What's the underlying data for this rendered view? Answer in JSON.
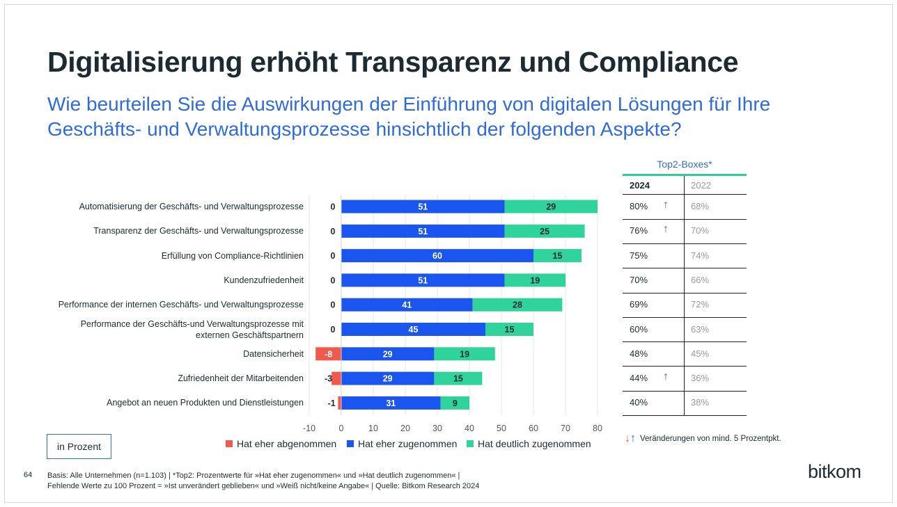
{
  "header": {
    "title": "Digitalisierung erhöht Transparenz und Compliance",
    "subtitle": "Wie beurteilen Sie die Auswirkungen der Einführung von digitalen Lösungen für Ihre Geschäfts- und Verwaltungsprozesse hinsichtlich der folgenden Aspekte?"
  },
  "chart_data": {
    "type": "bar",
    "orientation": "horizontal",
    "stacked": true,
    "categories": [
      "Automatisierung der Geschäfts- und Verwaltungsprozesse",
      "Transparenz der Geschäfts- und Verwaltungsprozesse",
      "Erfüllung von Compliance-Richtlinien",
      "Kundenzufriedenheit",
      "Performance der internen Geschäfts- und Verwaltungsprozesse",
      "Performance der Geschäfts-und Verwaltungsprozesse mit externen Geschäftspartnern",
      "Datensicherheit",
      "Zufriedenheit der Mitarbeitenden",
      "Angebot an neuen Produkten und Dienstleistungen"
    ],
    "series": [
      {
        "name": "Hat eher abgenommen",
        "color": "#f05a4a",
        "values": [
          0,
          0,
          0,
          0,
          0,
          0,
          -8,
          -3,
          -1
        ]
      },
      {
        "name": "Hat eher zugenommen",
        "color": "#1a55f0",
        "values": [
          51,
          51,
          60,
          51,
          41,
          45,
          29,
          29,
          31
        ]
      },
      {
        "name": "Hat deutlich zugenommen",
        "color": "#2fd39b",
        "values": [
          29,
          25,
          15,
          19,
          28,
          15,
          19,
          15,
          9
        ]
      }
    ],
    "xlim": [
      -10,
      80
    ],
    "xticks": [
      -10,
      0,
      10,
      20,
      30,
      40,
      50,
      60,
      70,
      80
    ],
    "grid": true,
    "legend": "bottom"
  },
  "top2": {
    "title": "Top2-Boxes*",
    "year_current": "2024",
    "year_previous": "2022",
    "rows": [
      {
        "current": "80%",
        "previous": "68%",
        "arrow": "up"
      },
      {
        "current": "76%",
        "previous": "70%",
        "arrow": "up"
      },
      {
        "current": "75%",
        "previous": "74%",
        "arrow": ""
      },
      {
        "current": "70%",
        "previous": "66%",
        "arrow": ""
      },
      {
        "current": "69%",
        "previous": "72%",
        "arrow": ""
      },
      {
        "current": "60%",
        "previous": "63%",
        "arrow": ""
      },
      {
        "current": "48%",
        "previous": "45%",
        "arrow": ""
      },
      {
        "current": "44%",
        "previous": "36%",
        "arrow": "up"
      },
      {
        "current": "40%",
        "previous": "38%",
        "arrow": ""
      }
    ],
    "arrow_up_glyph": "↑",
    "arrow_down_glyph": "↓",
    "change_note": "Veränderungen von mind. 5 Prozentpkt."
  },
  "unit_box": "in Prozent",
  "footer": {
    "page_number": "64",
    "line1": "Basis: Alle Unternehmen (n=1.103) | *Top2: Prozentwerte für »Hat eher zugenommen« und »Hat deutlich zugenommen« |",
    "line2": "Fehlende Werte zu 100 Prozent = »Ist unverändert geblieben« und »Weiß nicht/keine Angabe« | Quelle: Bitkom Research 2024"
  },
  "logo": "bitkom",
  "colors": {
    "title": "#1c2b33",
    "subtitle": "#2f6bdc",
    "accent_line": "#2ecc9a",
    "arrow_up": "#2f6bdc",
    "arrow_down": "#f05a4a"
  }
}
